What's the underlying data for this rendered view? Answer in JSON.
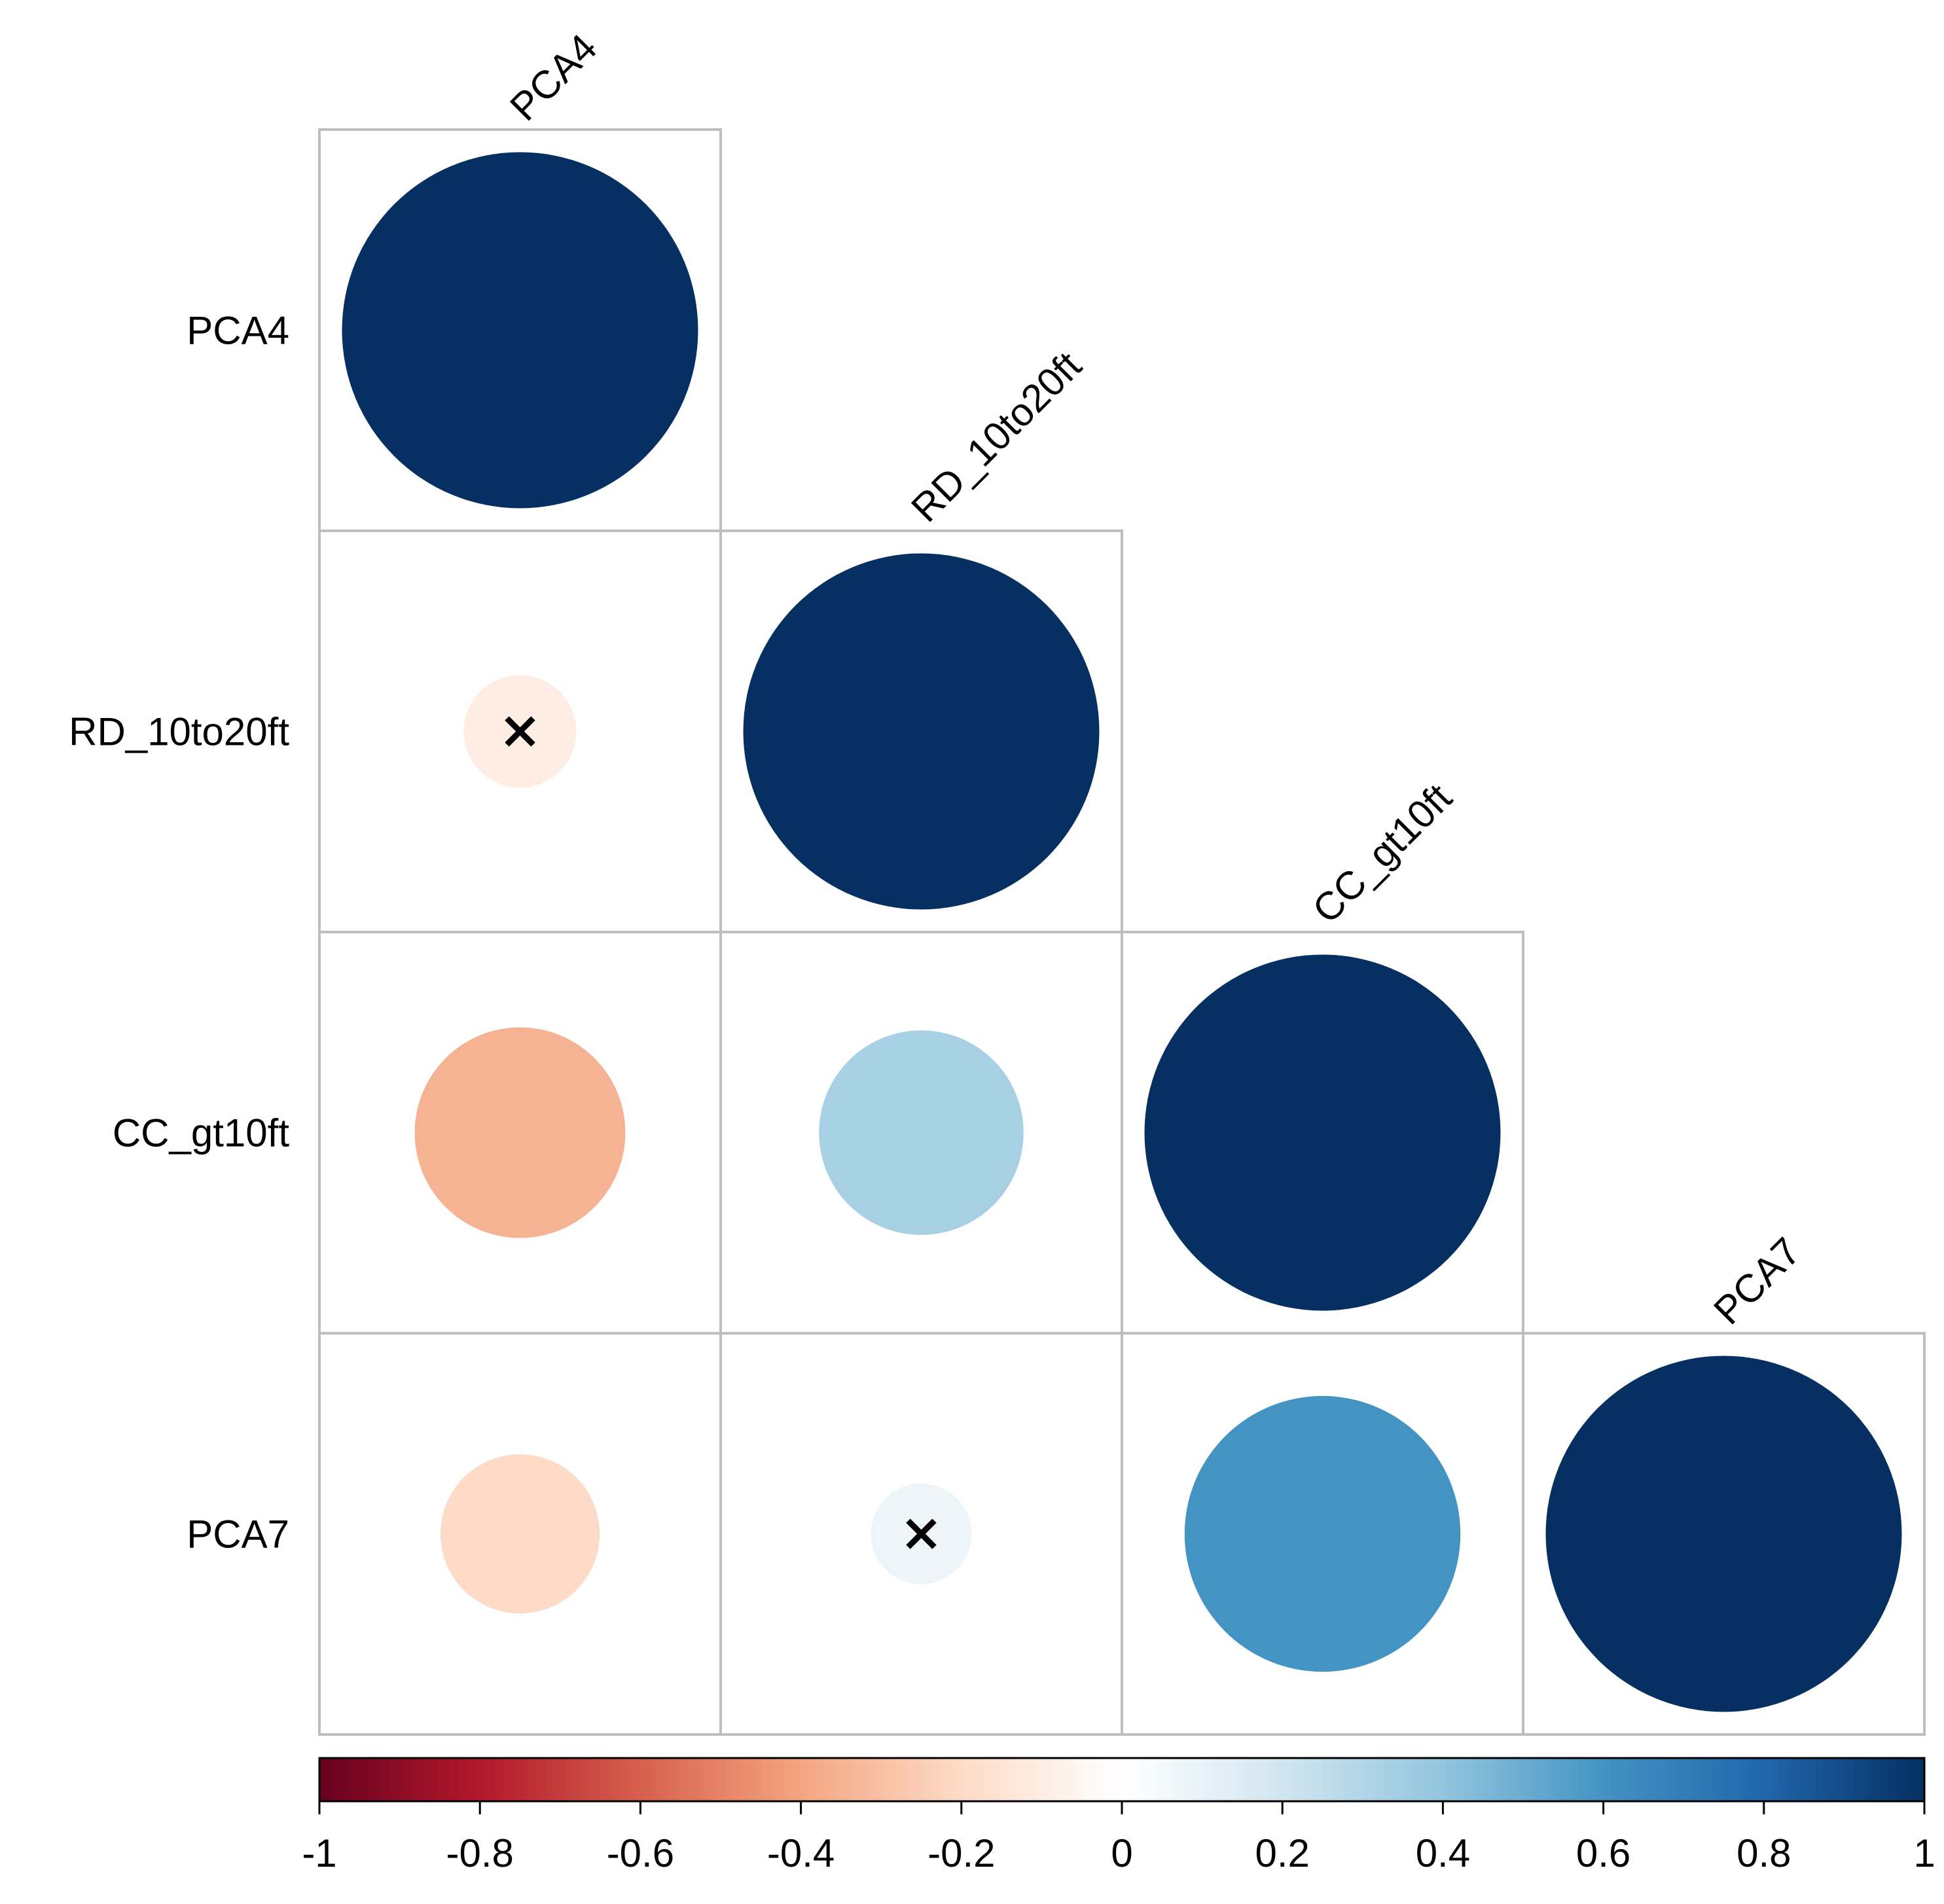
{
  "chart_data": {
    "type": "heatmap",
    "subtype": "correlation-matrix-lower-circle",
    "variables": [
      "PCA4",
      "RD_10to20ft",
      "CC_gt10ft",
      "PCA7"
    ],
    "matrix": [
      [
        1.0,
        null,
        null,
        null
      ],
      [
        -0.1,
        1.0,
        null,
        null
      ],
      [
        -0.35,
        0.33,
        1.0,
        null
      ],
      [
        -0.2,
        0.08,
        0.6,
        1.0
      ]
    ],
    "insignificant": [
      [
        1,
        0
      ],
      [
        3,
        1
      ]
    ],
    "colorbar": {
      "range": [
        -1,
        1
      ],
      "ticks": [
        "-1",
        "-0.8",
        "-0.6",
        "-0.4",
        "-0.2",
        "0",
        "0.2",
        "0.4",
        "0.6",
        "0.8",
        "1"
      ],
      "colors": [
        "#67001F",
        "#B2182B",
        "#D6604D",
        "#F4A582",
        "#FDDBC7",
        "#FFFFFF",
        "#D1E5F0",
        "#92C5DE",
        "#4393C3",
        "#2166AC",
        "#053061"
      ]
    },
    "legend": "bottom"
  }
}
